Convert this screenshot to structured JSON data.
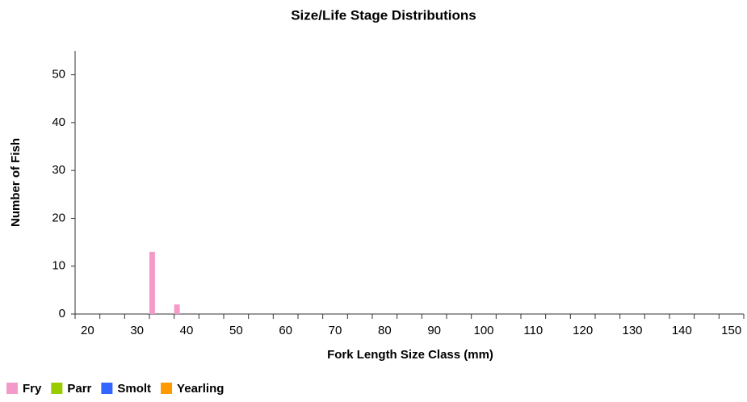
{
  "chart_data": {
    "type": "bar",
    "title": "Size/Life Stage Distributions",
    "xlabel": "Fork Length Size Class (mm)",
    "ylabel": "Number of Fish",
    "categories": [
      20,
      null,
      30,
      null,
      40,
      null,
      50,
      null,
      60,
      null,
      70,
      null,
      80,
      null,
      90,
      null,
      100,
      null,
      110,
      null,
      120,
      null,
      130,
      null,
      140,
      null,
      150
    ],
    "series": [
      {
        "name": "Fry",
        "color": "#f49ac8",
        "values": [
          0,
          0,
          0,
          13,
          2,
          0,
          0,
          0,
          0,
          0,
          0,
          0,
          0,
          0,
          0,
          0,
          0,
          0,
          0,
          0,
          0,
          0,
          0,
          0,
          0,
          0,
          0
        ]
      },
      {
        "name": "Parr",
        "color": "#99cc00",
        "values": [
          0,
          0,
          0,
          0,
          0,
          0,
          0,
          0,
          0,
          0,
          0,
          0,
          0,
          0,
          0,
          0,
          0,
          0,
          0,
          0,
          0,
          0,
          0,
          0,
          0,
          0,
          0
        ]
      },
      {
        "name": "Smolt",
        "color": "#3366ff",
        "values": [
          0,
          0,
          0,
          0,
          0,
          0,
          0,
          0,
          0,
          0,
          0,
          0,
          0,
          0,
          0,
          0,
          0,
          0,
          0,
          0,
          0,
          0,
          0,
          0,
          0,
          0,
          0
        ]
      },
      {
        "name": "Yearling",
        "color": "#ff9900",
        "values": [
          0,
          0,
          0,
          0,
          0,
          0,
          0,
          0,
          0,
          0,
          0,
          0,
          0,
          0,
          0,
          0,
          0,
          0,
          0,
          0,
          0,
          0,
          0,
          0,
          0,
          0,
          0
        ]
      }
    ],
    "ylim": [
      0,
      55
    ],
    "yticks": [
      0,
      10,
      20,
      30,
      40,
      50
    ],
    "grid": false,
    "legend": "bottom-left"
  }
}
